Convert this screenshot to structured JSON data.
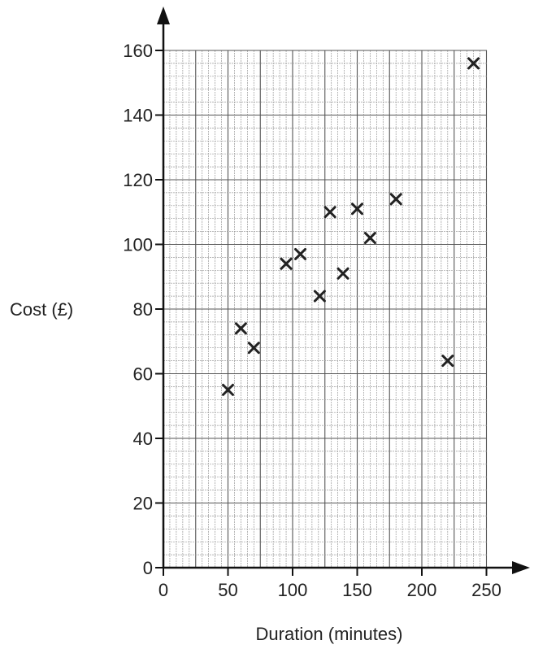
{
  "chart_data": {
    "type": "scatter",
    "title": "",
    "xlabel": "Duration (minutes)",
    "ylabel": "Cost (£)",
    "xlim": [
      0,
      250
    ],
    "ylim": [
      0,
      160
    ],
    "x_ticks": [
      "0",
      "50",
      "100",
      "150",
      "200",
      "250"
    ],
    "y_ticks": [
      "0",
      "20",
      "40",
      "60",
      "80",
      "100",
      "120",
      "140",
      "160"
    ],
    "grid": true,
    "marker": "cross",
    "points": [
      {
        "x": 50,
        "y": 55
      },
      {
        "x": 60,
        "y": 74
      },
      {
        "x": 70,
        "y": 68
      },
      {
        "x": 95,
        "y": 94
      },
      {
        "x": 106,
        "y": 97
      },
      {
        "x": 121,
        "y": 84
      },
      {
        "x": 129,
        "y": 110
      },
      {
        "x": 139,
        "y": 91
      },
      {
        "x": 150,
        "y": 111
      },
      {
        "x": 160,
        "y": 102
      },
      {
        "x": 180,
        "y": 114
      },
      {
        "x": 220,
        "y": 64
      },
      {
        "x": 240,
        "y": 156
      }
    ]
  },
  "colors": {
    "axis": "#111111",
    "grid_minor": "#9a9a9a",
    "grid_major": "#555555",
    "marker": "#222222",
    "text": "#222222"
  }
}
